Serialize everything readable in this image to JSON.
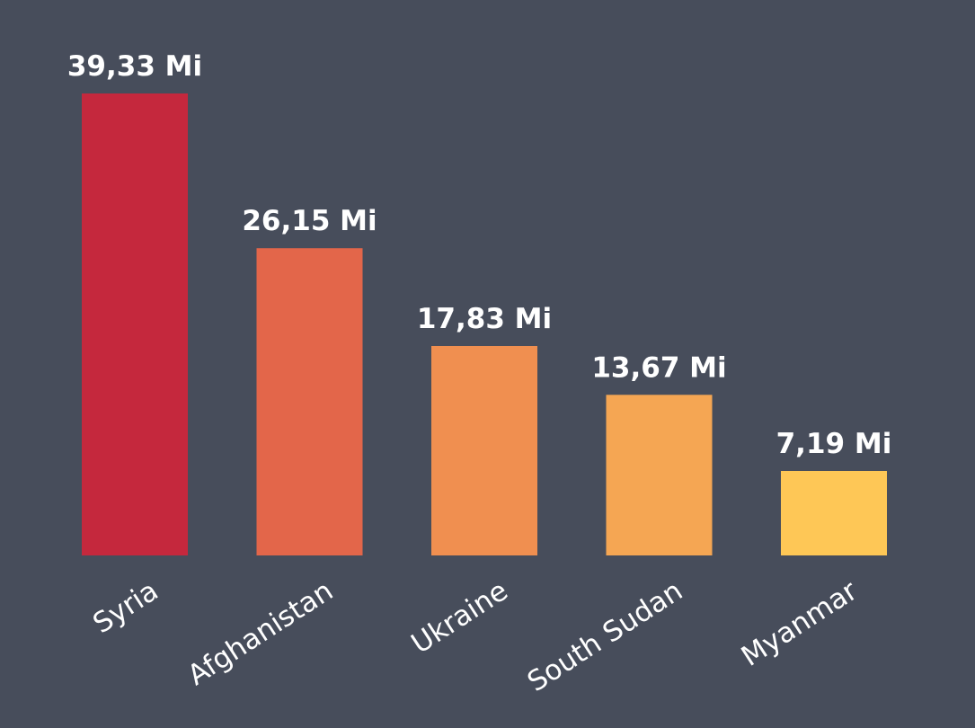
{
  "chart_data": {
    "type": "bar",
    "categories": [
      "Syria",
      "Afghanistan",
      "Ukraine",
      "South Sudan",
      "Myanmar"
    ],
    "values": [
      39.33,
      26.15,
      17.83,
      13.67,
      7.19
    ],
    "value_labels": [
      "39,33 Mi",
      "26,15 Mi",
      "17,83 Mi",
      "13,67 Mi",
      "7,19 Mi"
    ],
    "colors": [
      "#c5283d",
      "#e3664a",
      "#f08f50",
      "#f5a653",
      "#fec756"
    ],
    "background": "#474d5b",
    "label_color": "#ffffff",
    "ylim": [
      0,
      39.33
    ],
    "grid": false,
    "legend": "none",
    "title": "",
    "xlabel": "",
    "ylabel": ""
  }
}
